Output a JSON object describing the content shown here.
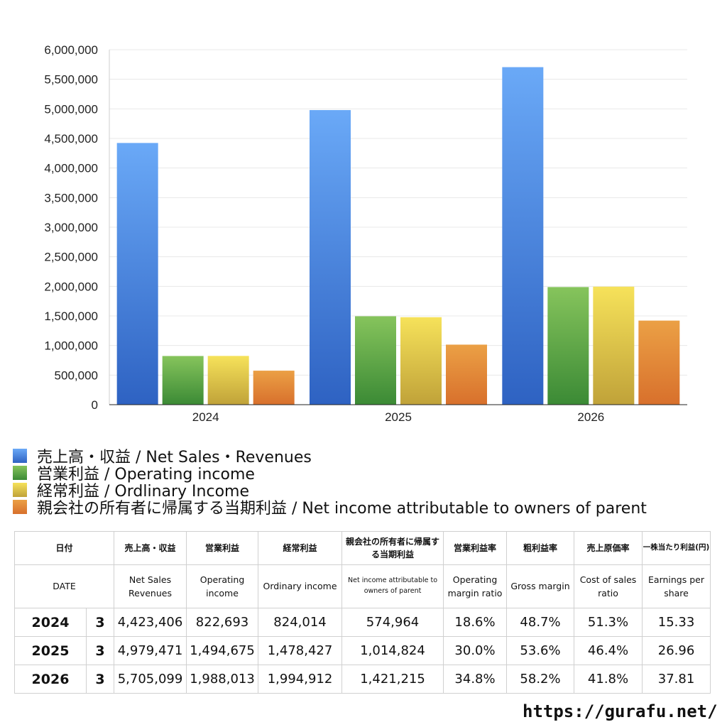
{
  "chart_data": {
    "type": "bar",
    "categories": [
      "2024",
      "2025",
      "2026"
    ],
    "series": [
      {
        "name": "売上高・収益 / Net Sales・Revenues",
        "values": [
          4423406,
          4979471,
          5705099
        ],
        "color_top": "#6aa9f7",
        "color_bottom": "#2e62c2"
      },
      {
        "name": "営業利益 / Operating income",
        "values": [
          822693,
          1494675,
          1988013
        ],
        "color_top": "#86c45c",
        "color_bottom": "#3b8a35"
      },
      {
        "name": "経常利益 / Ordlinary Income",
        "values": [
          824014,
          1478427,
          1994912
        ],
        "color_top": "#f6e25a",
        "color_bottom": "#c0a239"
      },
      {
        "name": "親会社の所有者に帰属する当期利益 / Net income attributable to owners of parent",
        "values": [
          574964,
          1014824,
          1421215
        ],
        "color_top": "#eba045",
        "color_bottom": "#d8702c"
      }
    ],
    "ylim": [
      0,
      6000000
    ],
    "yticks": [
      "0",
      "500,000",
      "1,000,000",
      "1,500,000",
      "2,000,000",
      "2,500,000",
      "3,000,000",
      "3,500,000",
      "4,000,000",
      "4,500,000",
      "5,000,000",
      "5,500,000",
      "6,000,000"
    ],
    "grid": true,
    "legend_position": "bottom-left"
  },
  "legend": [
    {
      "label": "売上高・収益 / Net Sales・Revenues",
      "color": "#4a86e0"
    },
    {
      "label": "営業利益 / Operating income",
      "color": "#5aa544"
    },
    {
      "label": "経常利益 / Ordlinary Income",
      "color": "#e2c846"
    },
    {
      "label": "親会社の所有者に帰属する当期利益 / Net income attributable to owners of parent",
      "color": "#e0843a"
    }
  ],
  "table": {
    "headers_ja": [
      "日付",
      "売上高・収益",
      "営業利益",
      "経常利益",
      "親会社の所有者に帰属する当期利益",
      "営業利益率",
      "粗利益率",
      "売上原価率",
      "一株当たり利益(円)"
    ],
    "headers_en": [
      "DATE",
      "Net Sales Revenues",
      "Operating income",
      "Ordinary income",
      "Net income attributable to owners of parent",
      "Operating margin ratio",
      "Gross margin",
      "Cost of sales ratio",
      "Earnings per share"
    ],
    "rows": [
      {
        "date": "2024",
        "month": "3",
        "sales": "4,423,406",
        "op": "822,693",
        "ord": "824,014",
        "net": "574,964",
        "opm": "18.6%",
        "gm": "48.7%",
        "cos": "51.3%",
        "eps": "15.33"
      },
      {
        "date": "2025",
        "month": "3",
        "sales": "4,979,471",
        "op": "1,494,675",
        "ord": "1,478,427",
        "net": "1,014,824",
        "opm": "30.0%",
        "gm": "53.6%",
        "cos": "46.4%",
        "eps": "26.96"
      },
      {
        "date": "2026",
        "month": "3",
        "sales": "5,705,099",
        "op": "1,988,013",
        "ord": "1,994,912",
        "net": "1,421,215",
        "opm": "34.8%",
        "gm": "58.2%",
        "cos": "41.8%",
        "eps": "37.81"
      }
    ]
  },
  "footer": {
    "site": "https://gurafu.net/"
  }
}
